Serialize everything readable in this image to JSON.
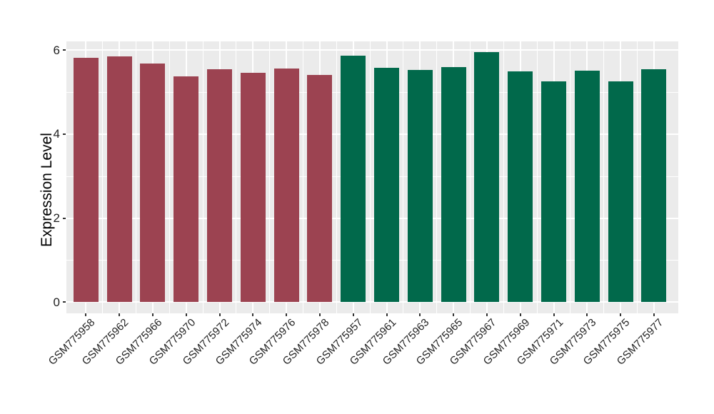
{
  "figure": {
    "background": "#FFFFFF",
    "panel_background": "#EBEBEB",
    "grid_color": "#FFFFFF",
    "tick_color": "#333333",
    "axis_text_color": "#1F1F1F"
  },
  "chart_data": {
    "type": "bar",
    "title": "",
    "xlabel": "",
    "ylabel": "Expression Level",
    "ylim": [
      0,
      6.2
    ],
    "yticks": [
      0,
      2,
      4,
      6
    ],
    "ytick_labels": [
      "0",
      "2",
      "4",
      "6"
    ],
    "minor_yticks": [
      1,
      3,
      5
    ],
    "grid": "major and minor, white on grey panel",
    "legend_position": "none",
    "groups": [
      {
        "id": "group1",
        "color": "#9C4351"
      },
      {
        "id": "group2",
        "color": "#01694B"
      }
    ],
    "bars": [
      {
        "label": "GSM775958",
        "value": 5.81,
        "group": "group1"
      },
      {
        "label": "GSM775962",
        "value": 5.84,
        "group": "group1"
      },
      {
        "label": "GSM775966",
        "value": 5.67,
        "group": "group1"
      },
      {
        "label": "GSM775970",
        "value": 5.37,
        "group": "group1"
      },
      {
        "label": "GSM775972",
        "value": 5.54,
        "group": "group1"
      },
      {
        "label": "GSM775974",
        "value": 5.45,
        "group": "group1"
      },
      {
        "label": "GSM775976",
        "value": 5.56,
        "group": "group1"
      },
      {
        "label": "GSM775978",
        "value": 5.41,
        "group": "group1"
      },
      {
        "label": "GSM775957",
        "value": 5.86,
        "group": "group2"
      },
      {
        "label": "GSM775961",
        "value": 5.58,
        "group": "group2"
      },
      {
        "label": "GSM775963",
        "value": 5.53,
        "group": "group2"
      },
      {
        "label": "GSM775965",
        "value": 5.6,
        "group": "group2"
      },
      {
        "label": "GSM775967",
        "value": 5.95,
        "group": "group2"
      },
      {
        "label": "GSM775969",
        "value": 5.49,
        "group": "group2"
      },
      {
        "label": "GSM775971",
        "value": 5.25,
        "group": "group2"
      },
      {
        "label": "GSM775973",
        "value": 5.51,
        "group": "group2"
      },
      {
        "label": "GSM775975",
        "value": 5.26,
        "group": "group2"
      },
      {
        "label": "GSM775977",
        "value": 5.55,
        "group": "group2"
      }
    ]
  }
}
